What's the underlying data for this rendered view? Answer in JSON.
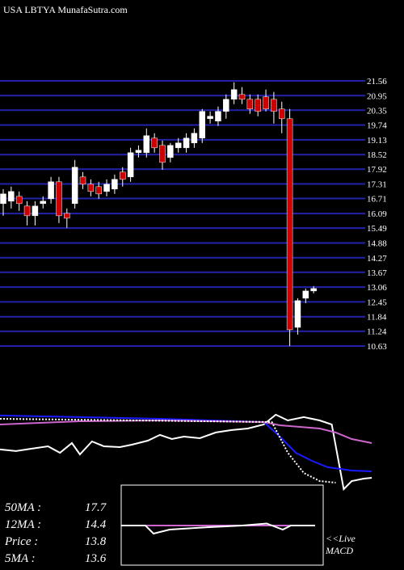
{
  "chart_data": [
    {
      "type": "candlestick",
      "title": "USA LBTYA MunafaSutra.com",
      "up_color": "#ffffff",
      "down_color": "#cc0000",
      "grid_color": "#2222aa",
      "ylim": [
        10.63,
        21.56
      ],
      "yticks": [
        21.56,
        20.95,
        20.35,
        19.74,
        19.13,
        18.52,
        17.92,
        17.31,
        16.71,
        16.09,
        15.49,
        14.88,
        14.27,
        13.67,
        13.06,
        12.45,
        11.84,
        11.24,
        10.63
      ],
      "open": [
        16.5,
        16.6,
        16.8,
        16.4,
        16.0,
        16.5,
        16.7,
        17.4,
        16.1,
        16.5,
        17.6,
        17.3,
        17.2,
        17.0,
        17.1,
        17.8,
        17.6,
        18.6,
        18.6,
        19.2,
        18.9,
        18.4,
        18.8,
        18.8,
        19.0,
        19.2,
        20.0,
        19.9,
        20.3,
        20.8,
        21.0,
        20.8,
        20.8,
        20.9,
        20.8,
        20.4,
        20.0,
        11.4,
        12.6,
        12.9
      ],
      "high": [
        17.1,
        17.2,
        17.0,
        16.6,
        16.6,
        16.8,
        17.6,
        17.6,
        16.3,
        18.3,
        17.8,
        17.5,
        17.4,
        17.5,
        17.7,
        18.0,
        18.8,
        18.9,
        19.6,
        19.4,
        19.1,
        19.0,
        19.2,
        19.4,
        19.6,
        20.4,
        20.3,
        20.5,
        21.0,
        21.5,
        21.3,
        21.0,
        21.0,
        21.2,
        21.1,
        20.7,
        20.4,
        12.6,
        13.0,
        13.1
      ],
      "low": [
        16.0,
        16.3,
        16.2,
        15.6,
        15.6,
        16.3,
        16.5,
        15.7,
        15.5,
        16.3,
        17.1,
        16.8,
        16.7,
        16.8,
        16.9,
        17.2,
        17.4,
        18.4,
        18.4,
        18.6,
        17.9,
        18.2,
        18.6,
        18.6,
        18.8,
        19.0,
        19.8,
        19.7,
        20.0,
        20.6,
        20.6,
        20.2,
        20.1,
        20.3,
        19.8,
        19.4,
        10.63,
        11.1,
        12.4,
        12.8
      ],
      "close": [
        16.9,
        17.0,
        16.5,
        16.0,
        16.4,
        16.6,
        17.4,
        16.0,
        15.9,
        18.0,
        17.3,
        17.0,
        16.9,
        17.3,
        17.5,
        17.5,
        18.6,
        18.7,
        19.3,
        18.8,
        18.2,
        18.9,
        19.0,
        19.2,
        19.4,
        20.3,
        20.1,
        20.3,
        20.8,
        21.2,
        20.8,
        20.4,
        20.3,
        20.4,
        20.3,
        20.0,
        11.3,
        12.5,
        12.9,
        13.0
      ]
    },
    {
      "type": "line",
      "xlim": [
        0,
        47
      ],
      "ylim": [
        12.95,
        21.3
      ],
      "series": [
        {
          "color": "#ffffff",
          "x": [
            0,
            2,
            4,
            6,
            7.5,
            9,
            10,
            11.5,
            13,
            15,
            16.5,
            18.5,
            20,
            21.5,
            23,
            25,
            27,
            29,
            31,
            33,
            34.5,
            36,
            38,
            40,
            41.5,
            43,
            44,
            45.5,
            46.5
          ],
          "values": [
            17.25,
            17.09,
            17.33,
            17.56,
            16.93,
            17.88,
            16.77,
            18.04,
            17.56,
            17.48,
            17.72,
            18.12,
            18.68,
            18.28,
            18.52,
            18.36,
            18.92,
            19.16,
            19.31,
            19.71,
            20.67,
            20.11,
            20.43,
            20.11,
            19.71,
            13.35,
            14.14,
            14.38,
            14.46
          ]
        },
        {
          "color": "#1a1aff",
          "x": [
            0,
            20,
            33,
            35,
            37,
            39,
            41,
            44,
            46.5
          ],
          "values": [
            20.59,
            20.27,
            19.95,
            18.52,
            16.93,
            16.13,
            15.5,
            15.18,
            15.1
          ]
        },
        {
          "color": "#cc66cc",
          "x": [
            0,
            10,
            20,
            33,
            35,
            40,
            42,
            44,
            46.5
          ],
          "values": [
            19.71,
            20.03,
            20.11,
            19.95,
            19.63,
            19.31,
            18.92,
            18.28,
            17.88
          ]
        },
        {
          "color": "#ffffff",
          "dashed": true,
          "x": [
            0,
            34,
            36,
            38,
            40,
            42
          ],
          "values": [
            20.27,
            19.95,
            16.93,
            14.94,
            14.14,
            13.98
          ]
        }
      ],
      "stats": [
        {
          "label": "50MA :",
          "value": 17.7
        },
        {
          "label": "12MA :",
          "value": 14.4
        },
        {
          "label": "Price  :",
          "value": 13.8
        },
        {
          "label": "5MA :",
          "value": 13.6
        }
      ]
    },
    {
      "type": "macd",
      "xlim": [
        0,
        24
      ],
      "ylim": [
        -1,
        1
      ],
      "caption": [
        "<<Live",
        "MACD"
      ],
      "series": [
        {
          "color": "#cc66cc",
          "x": [
            0,
            24
          ],
          "values": [
            0,
            0
          ]
        },
        {
          "color": "#ffffff",
          "x": [
            0,
            3,
            4,
            6,
            10,
            15,
            18,
            20,
            21,
            24
          ],
          "values": [
            0,
            0,
            -0.2,
            -0.1,
            -0.05,
            0,
            0.05,
            -0.1,
            0,
            0
          ]
        }
      ]
    }
  ]
}
